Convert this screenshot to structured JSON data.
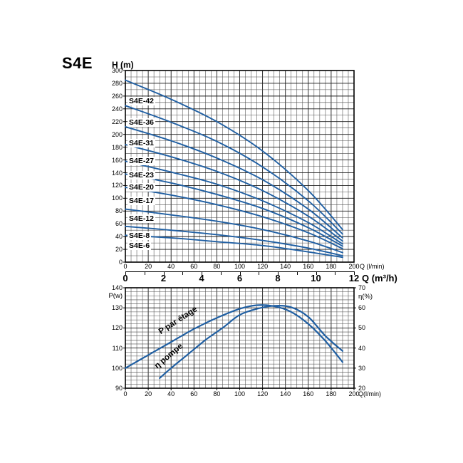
{
  "page": {
    "title": "S4E"
  },
  "colors": {
    "curve_blue": "#2160a3",
    "grid_minor": "#4d4d4d",
    "grid_major": "#1a1a1a",
    "border": "#000000",
    "text": "#000000",
    "background": "#ffffff"
  },
  "chart_data": [
    {
      "id": "head-curves",
      "type": "line",
      "title": "S4E head curves",
      "ylabel": "H (m)",
      "xlabel": "Q (l/min)",
      "xlabel_secondary": "Q (m³/h)",
      "xlim": [
        0,
        200
      ],
      "ylim": [
        0,
        300
      ],
      "grid": {
        "x_minor_step": 5,
        "x_major_step": 20,
        "y_minor_step": 10,
        "y_major_step": 20,
        "grid_on": true
      },
      "x_ticks": [
        0,
        20,
        40,
        60,
        80,
        100,
        120,
        140,
        160,
        180,
        200
      ],
      "x_ticks_secondary": [
        0,
        2,
        4,
        6,
        8,
        10,
        12
      ],
      "y_ticks": [
        300,
        280,
        260,
        240,
        220,
        200,
        180,
        160,
        140,
        120,
        100,
        80,
        60,
        40,
        20,
        0
      ],
      "series": [
        {
          "name": "S4E-42",
          "label_h": 252,
          "x": [
            0,
            40,
            80,
            120,
            160,
            190
          ],
          "y": [
            285,
            255,
            220,
            174,
            112,
            51
          ]
        },
        {
          "name": "S4E-36",
          "label_h": 219,
          "x": [
            0,
            40,
            80,
            120,
            160,
            190
          ],
          "y": [
            245,
            219,
            189,
            149,
            96,
            44
          ]
        },
        {
          "name": "S4E-31",
          "label_h": 186,
          "x": [
            0,
            40,
            80,
            120,
            160,
            190
          ],
          "y": [
            212,
            190,
            163,
            129,
            83,
            38
          ]
        },
        {
          "name": "S4E-27",
          "label_h": 158,
          "x": [
            0,
            40,
            80,
            120,
            160,
            190
          ],
          "y": [
            184,
            165,
            142,
            112,
            72,
            33
          ]
        },
        {
          "name": "S4E-23",
          "label_h": 136,
          "x": [
            0,
            40,
            80,
            120,
            160,
            190
          ],
          "y": [
            158,
            141,
            122,
            96,
            62,
            28.5
          ]
        },
        {
          "name": "S4E-20",
          "label_h": 117,
          "x": [
            0,
            40,
            80,
            120,
            160,
            190
          ],
          "y": [
            138,
            124,
            106,
            84,
            54,
            25
          ]
        },
        {
          "name": "S4E-17",
          "label_h": 96,
          "x": [
            0,
            40,
            80,
            120,
            160,
            190
          ],
          "y": [
            117,
            105,
            90,
            71,
            46,
            21
          ]
        },
        {
          "name": "S4E-12",
          "label_h": 68,
          "x": [
            0,
            40,
            80,
            120,
            160,
            190
          ],
          "y": [
            83,
            74,
            64,
            51,
            33,
            15
          ]
        },
        {
          "name": "S4E-8",
          "label_h": 41,
          "x": [
            0,
            40,
            80,
            120,
            160,
            190
          ],
          "y": [
            56,
            50,
            43,
            34,
            22,
            10
          ]
        },
        {
          "name": "S4E-6",
          "label_h": 26,
          "x": [
            0,
            40,
            80,
            120,
            160,
            190
          ],
          "y": [
            42,
            38,
            32,
            26,
            16,
            7.5
          ]
        }
      ]
    },
    {
      "id": "power-efficiency",
      "type": "line",
      "title": "Power per stage and pump efficiency",
      "ylabel_left": "P(w)",
      "ylabel_right": "η(%)",
      "xlabel": "Q(l/min)",
      "xlim": [
        0,
        200
      ],
      "ylim_left": [
        90,
        140
      ],
      "ylim_right": [
        20,
        70
      ],
      "grid": {
        "x_minor_step": 5,
        "x_major_step": 20,
        "y_minor_step": 2,
        "y_major_step": 10,
        "grid_on": true
      },
      "x_ticks": [
        0,
        20,
        40,
        60,
        80,
        100,
        120,
        140,
        160,
        180,
        200
      ],
      "y_ticks_left": [
        140,
        130,
        120,
        110,
        100,
        90
      ],
      "y_ticks_right": [
        70,
        60,
        50,
        40,
        30,
        20
      ],
      "series": [
        {
          "name": "P par étage",
          "axis": "left",
          "x": [
            0,
            20,
            40,
            60,
            80,
            100,
            115,
            130,
            145,
            160,
            175,
            190
          ],
          "y": [
            100,
            106.5,
            113,
            119.5,
            125,
            129.5,
            131.3,
            130.8,
            128,
            122,
            113.5,
            103
          ],
          "label_center": [
            250,
            450
          ],
          "label_angle": -33
        },
        {
          "name": "η pompe",
          "axis": "right",
          "x": [
            30,
            40,
            55,
            70,
            85,
            100,
            115,
            130,
            145,
            160,
            175,
            190
          ],
          "y": [
            25,
            30,
            37,
            44,
            50,
            56.5,
            59.5,
            61,
            60.3,
            55.5,
            46,
            38.5
          ],
          "label_center": [
            237,
            500
          ],
          "label_angle": -40
        }
      ]
    }
  ]
}
